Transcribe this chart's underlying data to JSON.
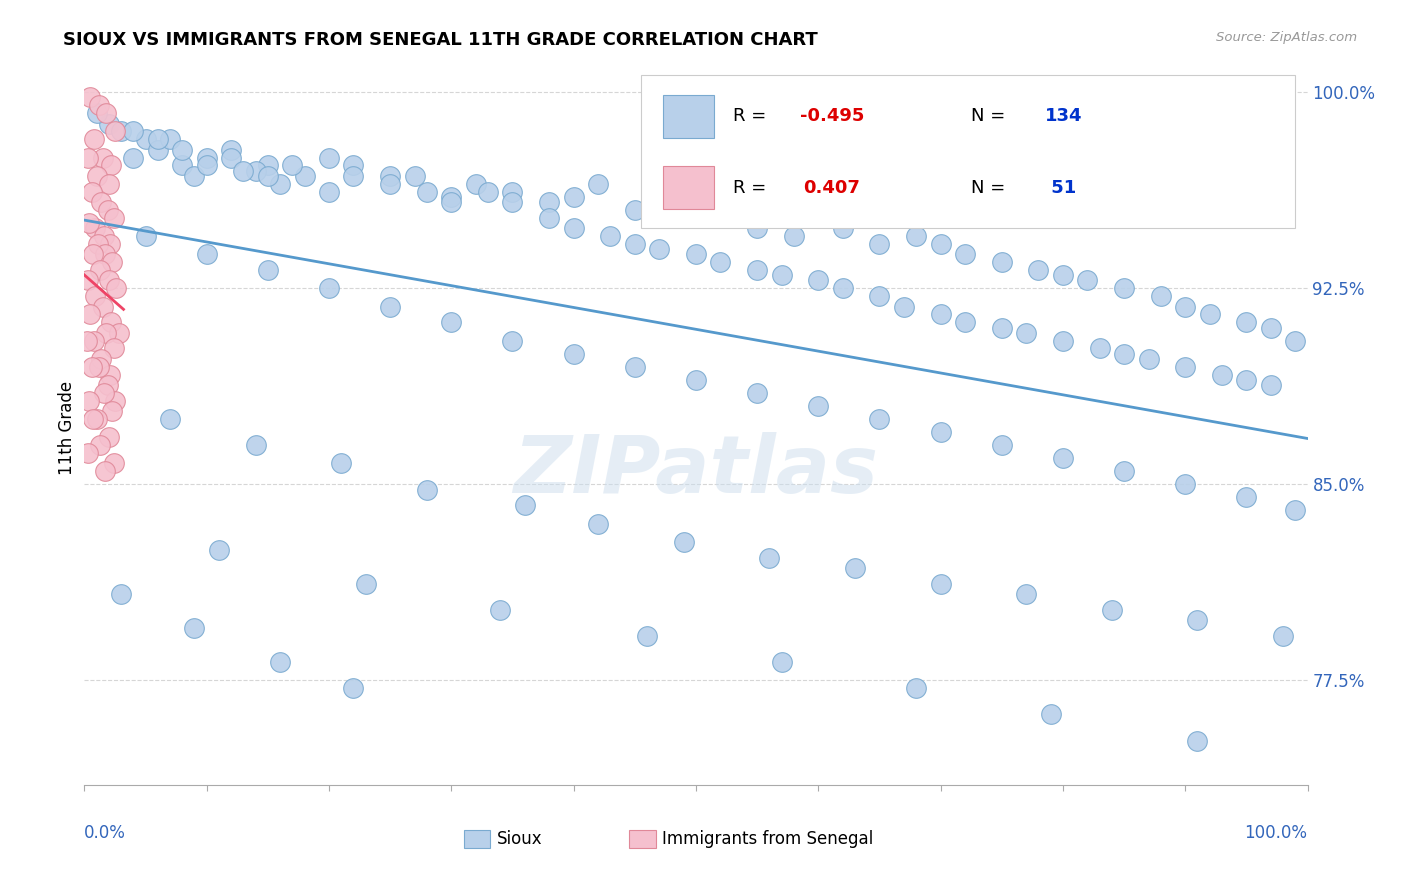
{
  "title": "SIOUX VS IMMIGRANTS FROM SENEGAL 11TH GRADE CORRELATION CHART",
  "source": "Source: ZipAtlas.com",
  "ylabel": "11th Grade",
  "xlim": [
    0.0,
    1.0
  ],
  "ylim": [
    0.735,
    1.008
  ],
  "yticks": [
    0.775,
    0.85,
    0.925,
    1.0
  ],
  "ytick_labels": [
    "77.5%",
    "85.0%",
    "92.5%",
    "100.0%"
  ],
  "blue_R": -0.495,
  "blue_N": 134,
  "pink_R": 0.407,
  "pink_N": 51,
  "blue_color": "#b8d0ea",
  "blue_edge": "#7aaad0",
  "pink_color": "#f5c0ce",
  "pink_edge": "#e08898",
  "blue_line_color": "#5599cc",
  "pink_line_color": "#ee4466",
  "watermark": "ZIPatlas",
  "legend_R_color": "#dd0000",
  "legend_N_color": "#0033cc",
  "blue_x": [
    0.02,
    0.03,
    0.01,
    0.05,
    0.04,
    0.06,
    0.08,
    0.07,
    0.09,
    0.1,
    0.12,
    0.15,
    0.18,
    0.2,
    0.22,
    0.14,
    0.16,
    0.25,
    0.28,
    0.3,
    0.32,
    0.35,
    0.38,
    0.4,
    0.42,
    0.45,
    0.48,
    0.5,
    0.52,
    0.55,
    0.58,
    0.6,
    0.62,
    0.65,
    0.68,
    0.7,
    0.72,
    0.75,
    0.78,
    0.8,
    0.82,
    0.85,
    0.88,
    0.9,
    0.92,
    0.95,
    0.97,
    0.99,
    0.04,
    0.06,
    0.08,
    0.1,
    0.12,
    0.13,
    0.15,
    0.17,
    0.2,
    0.22,
    0.25,
    0.27,
    0.3,
    0.33,
    0.35,
    0.38,
    0.4,
    0.43,
    0.45,
    0.47,
    0.5,
    0.52,
    0.55,
    0.57,
    0.6,
    0.62,
    0.65,
    0.67,
    0.7,
    0.72,
    0.75,
    0.77,
    0.8,
    0.83,
    0.85,
    0.87,
    0.9,
    0.93,
    0.95,
    0.97,
    0.05,
    0.1,
    0.15,
    0.2,
    0.25,
    0.3,
    0.35,
    0.4,
    0.45,
    0.5,
    0.55,
    0.6,
    0.65,
    0.7,
    0.75,
    0.8,
    0.85,
    0.9,
    0.95,
    0.99,
    0.07,
    0.14,
    0.21,
    0.28,
    0.36,
    0.42,
    0.49,
    0.56,
    0.63,
    0.7,
    0.77,
    0.84,
    0.91,
    0.98,
    0.11,
    0.23,
    0.34,
    0.46,
    0.57,
    0.68,
    0.79,
    0.91,
    0.03,
    0.09,
    0.16,
    0.22
  ],
  "blue_y": [
    0.988,
    0.985,
    0.992,
    0.982,
    0.975,
    0.978,
    0.972,
    0.982,
    0.968,
    0.975,
    0.978,
    0.972,
    0.968,
    0.975,
    0.972,
    0.97,
    0.965,
    0.968,
    0.962,
    0.96,
    0.965,
    0.962,
    0.958,
    0.96,
    0.965,
    0.955,
    0.96,
    0.952,
    0.958,
    0.948,
    0.945,
    0.952,
    0.948,
    0.942,
    0.945,
    0.942,
    0.938,
    0.935,
    0.932,
    0.93,
    0.928,
    0.925,
    0.922,
    0.918,
    0.915,
    0.912,
    0.91,
    0.905,
    0.985,
    0.982,
    0.978,
    0.972,
    0.975,
    0.97,
    0.968,
    0.972,
    0.962,
    0.968,
    0.965,
    0.968,
    0.958,
    0.962,
    0.958,
    0.952,
    0.948,
    0.945,
    0.942,
    0.94,
    0.938,
    0.935,
    0.932,
    0.93,
    0.928,
    0.925,
    0.922,
    0.918,
    0.915,
    0.912,
    0.91,
    0.908,
    0.905,
    0.902,
    0.9,
    0.898,
    0.895,
    0.892,
    0.89,
    0.888,
    0.945,
    0.938,
    0.932,
    0.925,
    0.918,
    0.912,
    0.905,
    0.9,
    0.895,
    0.89,
    0.885,
    0.88,
    0.875,
    0.87,
    0.865,
    0.86,
    0.855,
    0.85,
    0.845,
    0.84,
    0.875,
    0.865,
    0.858,
    0.848,
    0.842,
    0.835,
    0.828,
    0.822,
    0.818,
    0.812,
    0.808,
    0.802,
    0.798,
    0.792,
    0.825,
    0.812,
    0.802,
    0.792,
    0.782,
    0.772,
    0.762,
    0.752,
    0.808,
    0.795,
    0.782,
    0.772
  ],
  "pink_x": [
    0.005,
    0.012,
    0.018,
    0.025,
    0.008,
    0.015,
    0.022,
    0.003,
    0.01,
    0.02,
    0.006,
    0.014,
    0.019,
    0.024,
    0.009,
    0.016,
    0.021,
    0.004,
    0.011,
    0.017,
    0.023,
    0.007,
    0.013,
    0.02,
    0.026,
    0.003,
    0.009,
    0.015,
    0.022,
    0.028,
    0.005,
    0.018,
    0.024,
    0.008,
    0.014,
    0.021,
    0.002,
    0.012,
    0.019,
    0.025,
    0.006,
    0.016,
    0.023,
    0.004,
    0.01,
    0.02,
    0.007,
    0.013,
    0.024,
    0.003,
    0.017
  ],
  "pink_y": [
    0.998,
    0.995,
    0.992,
    0.985,
    0.982,
    0.975,
    0.972,
    0.975,
    0.968,
    0.965,
    0.962,
    0.958,
    0.955,
    0.952,
    0.948,
    0.945,
    0.942,
    0.95,
    0.942,
    0.938,
    0.935,
    0.938,
    0.932,
    0.928,
    0.925,
    0.928,
    0.922,
    0.918,
    0.912,
    0.908,
    0.915,
    0.908,
    0.902,
    0.905,
    0.898,
    0.892,
    0.905,
    0.895,
    0.888,
    0.882,
    0.895,
    0.885,
    0.878,
    0.882,
    0.875,
    0.868,
    0.875,
    0.865,
    0.858,
    0.862,
    0.855
  ]
}
